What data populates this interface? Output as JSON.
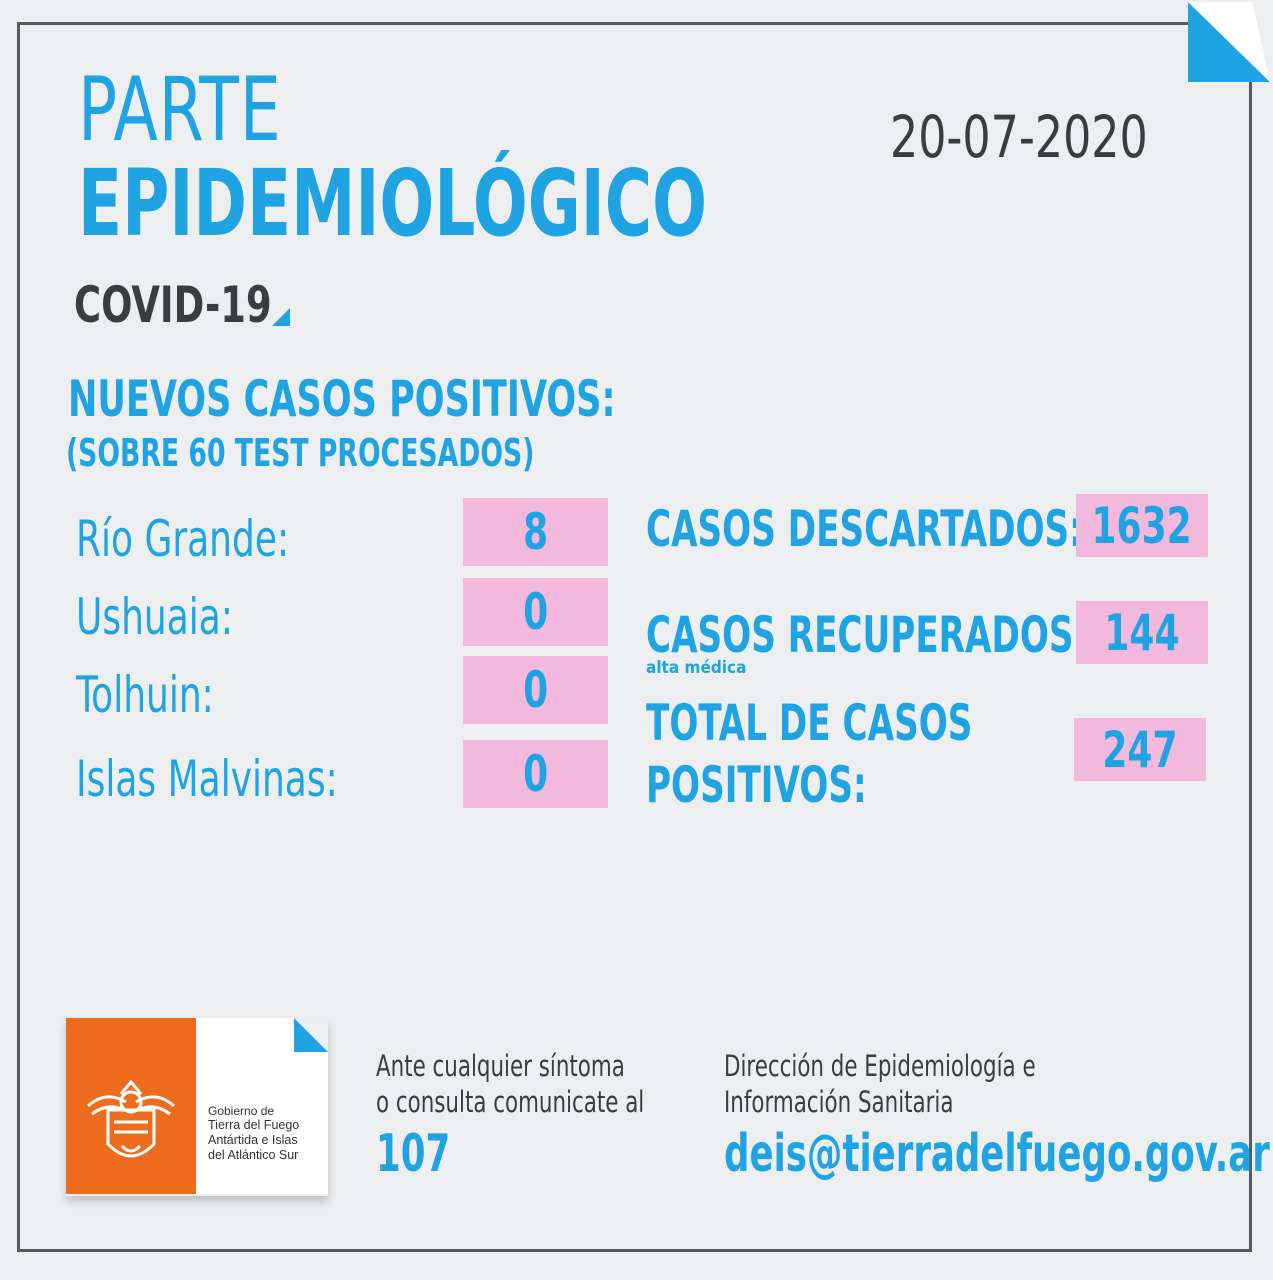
{
  "header": {
    "title_line1": "PARTE",
    "title_line2": "EPIDEMIOLÓGICO",
    "date": "20-07-2020",
    "subtitle": "COVID-19"
  },
  "new_cases": {
    "heading": "NUEVOS CASOS POSITIVOS:",
    "subheading": "(SOBRE 60 TEST PROCESADOS)",
    "cities": [
      {
        "label": "Río Grande:",
        "value": "8"
      },
      {
        "label": "Ushuaia:",
        "value": "0"
      },
      {
        "label": "Tolhuin:",
        "value": "0"
      },
      {
        "label": "Islas Malvinas:",
        "value": "0"
      }
    ]
  },
  "stats": {
    "discarded_label": "CASOS DESCARTADOS:",
    "discarded_value": "1632",
    "recovered_label": "CASOS RECUPERADOS:",
    "recovered_sublabel": "alta médica",
    "recovered_value": "144",
    "total_label_line1": "TOTAL DE CASOS",
    "total_label_line2": "POSITIVOS:",
    "total_value": "247"
  },
  "logo": {
    "line1": "Gobierno de",
    "line2": "Tierra del Fuego",
    "line3": "Antártida e Islas",
    "line4": "del Atlántico Sur"
  },
  "footer": {
    "contact_line1": "Ante cualquier síntoma",
    "contact_line2": "o consulta comunicate al",
    "phone": "107",
    "office_line1": "Dirección de Epidemiología e",
    "office_line2": "Información Sanitaria",
    "email": "deis@tierradelfuego.gov.ar"
  },
  "colors": {
    "accent": "#1fa3e2",
    "highlight": "#f2b9dc",
    "text_dark": "#3a3d40",
    "background": "#eceef0",
    "logo_orange": "#ee6c1e"
  }
}
